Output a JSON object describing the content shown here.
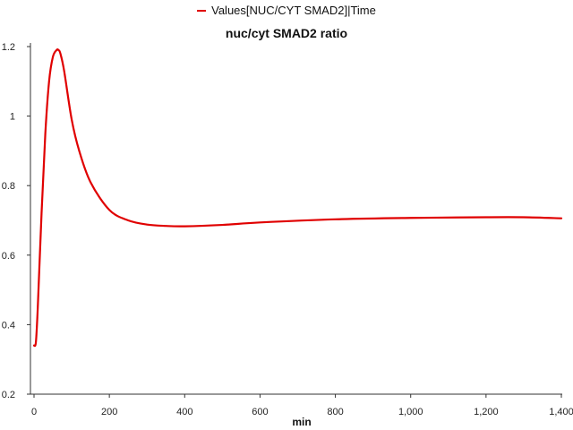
{
  "chart_data": {
    "type": "line",
    "title": "nuc/cyt SMAD2 ratio",
    "xlabel": "min",
    "ylabel": "",
    "legend_position": "top-center",
    "grid": false,
    "xlim": [
      0,
      1400
    ],
    "ylim": [
      0.2,
      1.2
    ],
    "x_ticks": [
      0,
      200,
      400,
      600,
      800,
      1000,
      1200,
      1400
    ],
    "x_tick_labels": [
      "0",
      "200",
      "400",
      "600",
      "800",
      "1,000",
      "1,200",
      "1,400"
    ],
    "y_ticks": [
      0.2,
      0.4,
      0.6,
      0.8,
      1.0,
      1.2
    ],
    "y_tick_labels": [
      "0.2",
      "0.4",
      "0.6",
      "0.8",
      "1",
      "1.2"
    ],
    "series": [
      {
        "name": "Values[NUC/CYT SMAD2]|Time",
        "color": "#e00000",
        "x": [
          0,
          5,
          10,
          20,
          30,
          40,
          50,
          60,
          65,
          70,
          80,
          100,
          120,
          150,
          200,
          250,
          300,
          350,
          400,
          500,
          600,
          800,
          1000,
          1200,
          1300,
          1400
        ],
        "y": [
          0.34,
          0.35,
          0.45,
          0.72,
          0.95,
          1.1,
          1.17,
          1.19,
          1.19,
          1.18,
          1.13,
          0.99,
          0.9,
          0.81,
          0.73,
          0.7,
          0.688,
          0.684,
          0.683,
          0.687,
          0.694,
          0.703,
          0.707,
          0.709,
          0.709,
          0.706
        ]
      }
    ]
  }
}
